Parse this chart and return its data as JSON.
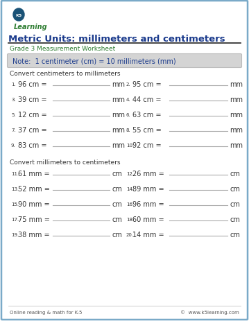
{
  "title": "Metric Units: millimeters and centimeters",
  "subtitle": "Grade 3 Measurement Worksheet",
  "note": "Note:  1 centimeter (cm) = 10 millimeters (mm)",
  "section1_label": "Convert centimeters to millimeters",
  "section2_label": "Convert millimeters to centimeters",
  "cm_to_mm": [
    [
      "1.",
      "96 cm =",
      "mm",
      "2.",
      "95 cm =",
      "mm"
    ],
    [
      "3.",
      "39 cm =",
      "mm",
      "4.",
      "44 cm =",
      "mm"
    ],
    [
      "5.",
      "12 cm =",
      "mm",
      "6.",
      "63 cm =",
      "mm"
    ],
    [
      "7.",
      "37 cm =",
      "mm",
      "8.",
      "55 cm =",
      "mm"
    ],
    [
      "9.",
      "83 cm =",
      "mm",
      "10.",
      "92 cm =",
      "mm"
    ]
  ],
  "mm_to_cm": [
    [
      "11.",
      "61 mm =",
      "cm",
      "12.",
      "26 mm =",
      "cm"
    ],
    [
      "13.",
      "52 mm =",
      "cm",
      "14.",
      "89 mm =",
      "cm"
    ],
    [
      "15.",
      "90 mm =",
      "cm",
      "16.",
      "96 mm =",
      "cm"
    ],
    [
      "17.",
      "75 mm =",
      "cm",
      "18.",
      "60 mm =",
      "cm"
    ],
    [
      "19.",
      "38 mm =",
      "cm",
      "20.",
      "14 mm =",
      "cm"
    ]
  ],
  "footer_left": "Online reading & math for K-5",
  "footer_right": "©  www.k5learning.com",
  "bg_color": "#ffffff",
  "border_color": "#7aaac8",
  "title_color": "#1a3a8c",
  "subtitle_color": "#2e7d32",
  "note_bg": "#d4d4d4",
  "note_text_color": "#1a3a8c",
  "body_color": "#333333",
  "line_color": "#aaaaaa",
  "footer_color": "#555555"
}
